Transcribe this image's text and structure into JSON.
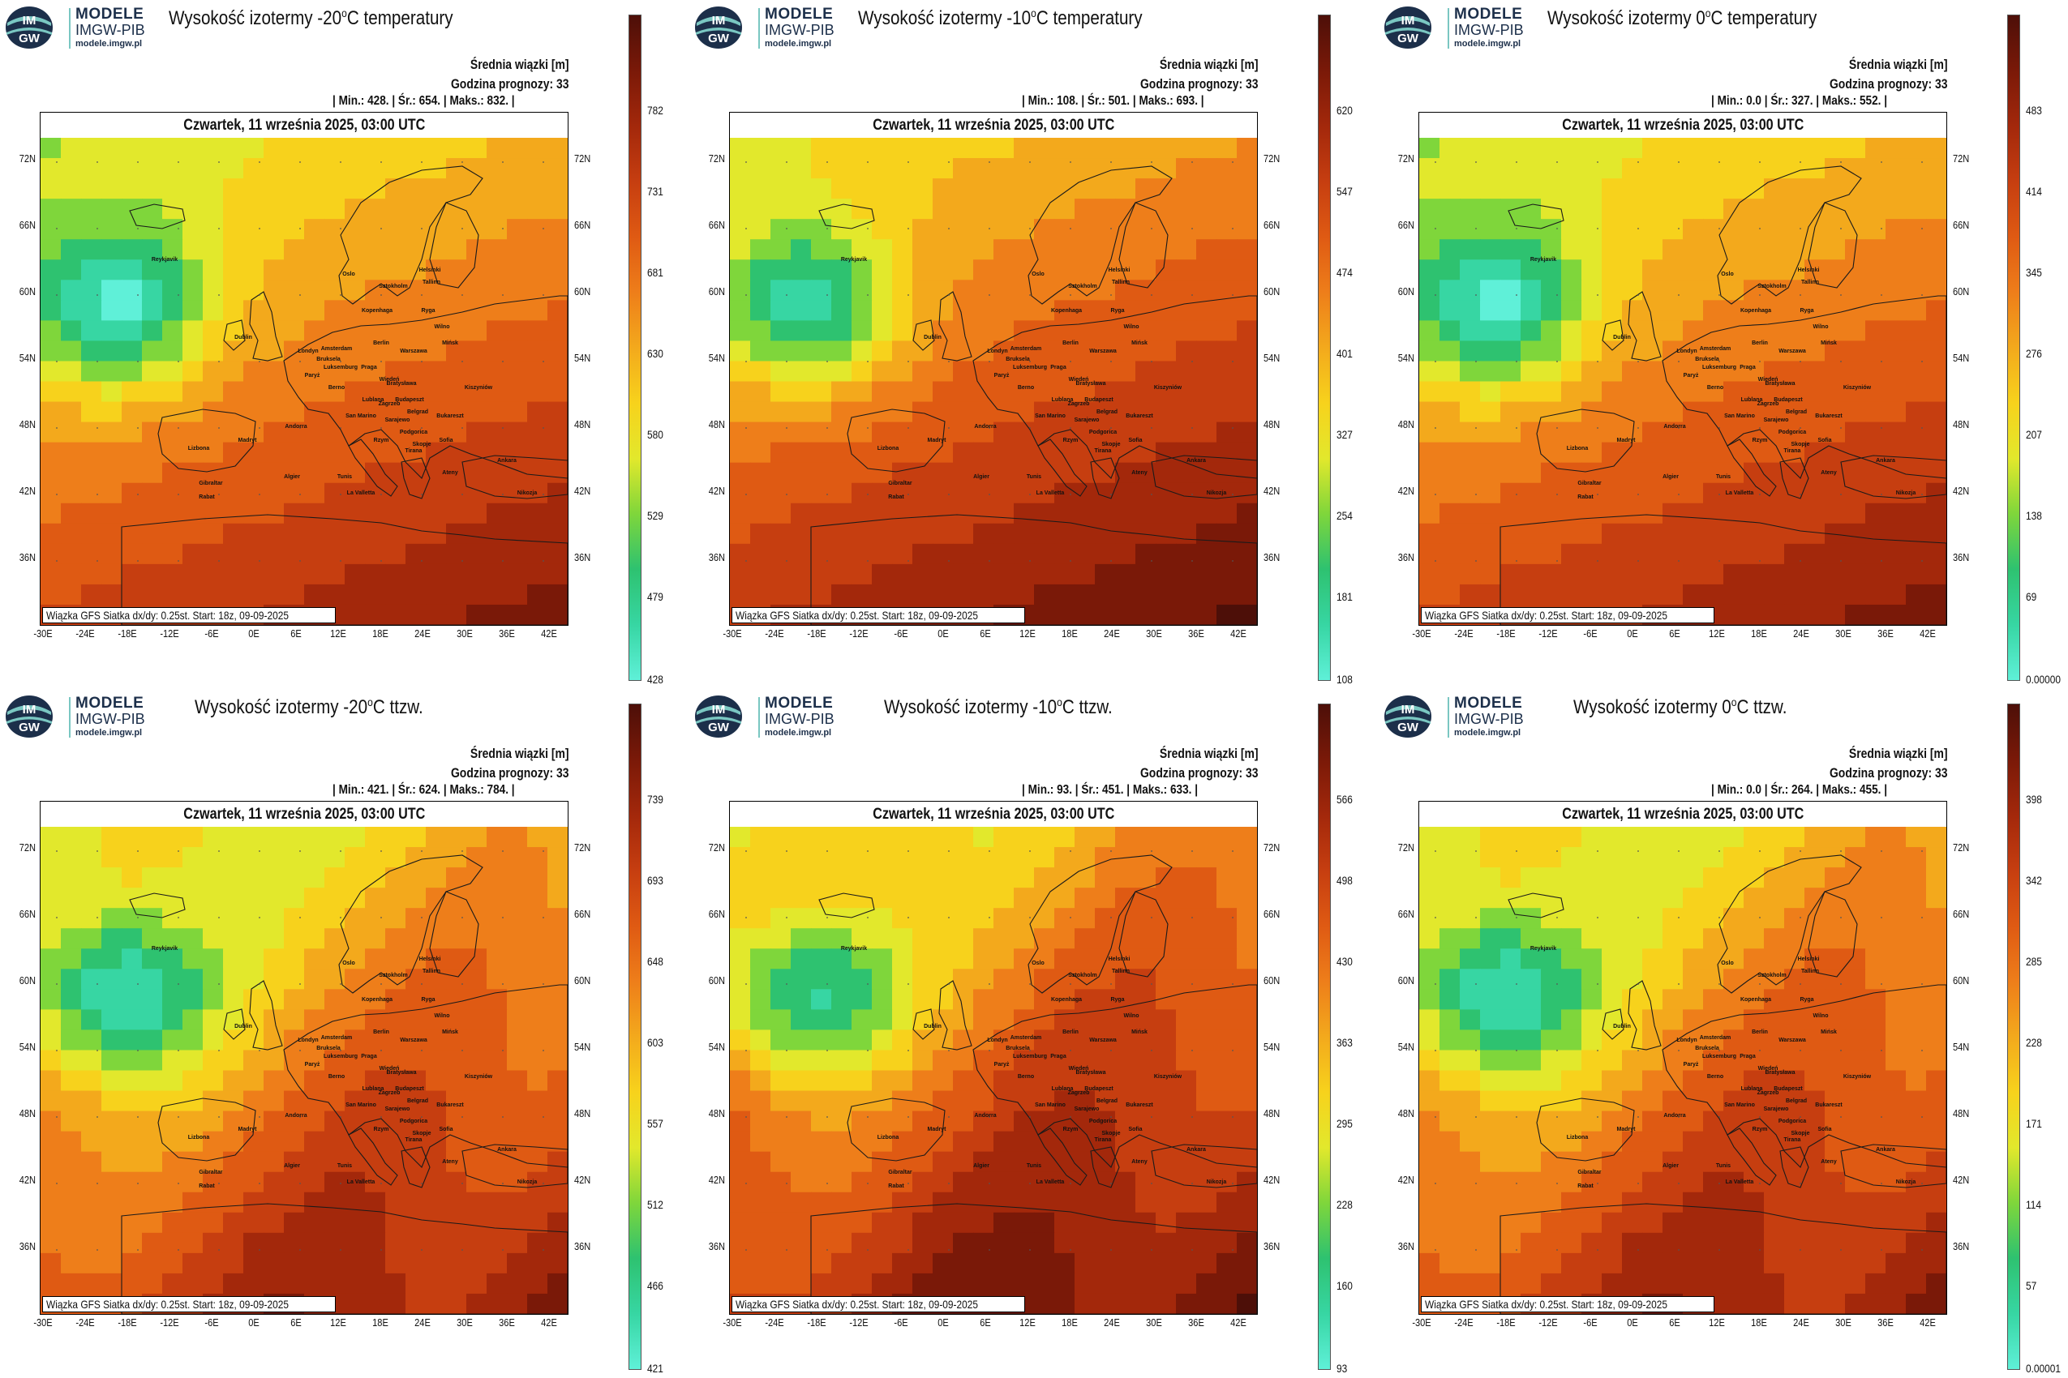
{
  "logo": {
    "line1": "MODELE",
    "line2": "IMGW-PIB",
    "line3": "modele.imgw.pl",
    "badge": "IMGW"
  },
  "common": {
    "info_line1": "Średnia wiązki [m]",
    "info_line2": "Godzina prognozy: 33",
    "date": "Czwartek, 11 września 2025, 03:00 UTC",
    "footnote": "Wiązka GFS Siatka dx/dy: 0.25st. Start: 18z, 09-09-2025",
    "x_ticks": [
      "-30E",
      "-24E",
      "-18E",
      "-12E",
      "-6E",
      "0E",
      "6E",
      "12E",
      "18E",
      "24E",
      "30E",
      "36E",
      "42E"
    ],
    "y_ticks": [
      "72N",
      "66N",
      "60N",
      "54N",
      "48N",
      "42N",
      "36N"
    ],
    "cities": [
      "Oslo",
      "Sztokholm",
      "Helsinki",
      "Tallinn",
      "Ryga",
      "Kopenhaga",
      "Wilno",
      "Mińsk",
      "Amsterdam",
      "Bruksela",
      "Berlin",
      "Warszawa",
      "Londyn",
      "Dublin",
      "Luksemburg",
      "Paryż",
      "Praga",
      "Wiedeń",
      "Bratysława",
      "Kiszyniów",
      "Budapeszt",
      "Berno",
      "Lublana",
      "Zagrzeb",
      "Belgrad",
      "Bukareszt",
      "San Marino",
      "Sarajewo",
      "Podgorica",
      "Sofia",
      "Andorra",
      "Rzym",
      "Skopje",
      "Tirana",
      "Ankara",
      "Madryt",
      "Lizbona",
      "Ateny",
      "Algier",
      "Tunis",
      "Gibraltar",
      "Rabat",
      "La Valletta",
      "Nikozja",
      "Reykjavik"
    ]
  },
  "colors": {
    "cbar": [
      "#5ff0d8",
      "#37d6a3",
      "#2ec270",
      "#7fd63b",
      "#e2e82c",
      "#f7d21c",
      "#f3a91c",
      "#ee7e1a",
      "#df5a13",
      "#c63e10",
      "#a3280b",
      "#7a1908",
      "#4d0f08"
    ]
  },
  "panels": [
    {
      "title_pre": "Wysokość izotermy -20",
      "title_sup": "o",
      "title_post": "C temperatury",
      "stats": {
        "min_label": "Min.:",
        "min": "428.",
        "avg_label": "Śr.:",
        "avg": "654.",
        "max_label": "Maks.:",
        "max": "832."
      },
      "cbar_labels": [
        "782",
        "731",
        "681",
        "630",
        "580",
        "529",
        "479",
        "428"
      ],
      "range": [
        428,
        832
      ]
    },
    {
      "title_pre": "Wysokość izotermy -10",
      "title_sup": "o",
      "title_post": "C temperatury",
      "stats": {
        "min_label": "Min.:",
        "min": "108.",
        "avg_label": "Śr.:",
        "avg": "501.",
        "max_label": "Maks.:",
        "max": "693."
      },
      "cbar_labels": [
        "620",
        "547",
        "474",
        "401",
        "327",
        "254",
        "181",
        "108"
      ],
      "range": [
        108,
        693
      ]
    },
    {
      "title_pre": "Wysokość izotermy 0",
      "title_sup": "o",
      "title_post": "C temperatury",
      "stats": {
        "min_label": "Min.:",
        "min": "0.0",
        "avg_label": "Śr.:",
        "avg": "327.",
        "max_label": "Maks.:",
        "max": "552."
      },
      "cbar_labels": [
        "483",
        "414",
        "345",
        "276",
        "207",
        "138",
        "69",
        "0.00000"
      ],
      "range": [
        0,
        552
      ]
    },
    {
      "title_pre": "Wysokość izotermy -20",
      "title_sup": "o",
      "title_post": "C ttzw.",
      "stats": {
        "min_label": "Min.:",
        "min": "421.",
        "avg_label": "Śr.:",
        "avg": "624.",
        "max_label": "Maks.:",
        "max": "784."
      },
      "cbar_labels": [
        "739",
        "693",
        "648",
        "603",
        "557",
        "512",
        "466",
        "421"
      ],
      "range": [
        421,
        784
      ]
    },
    {
      "title_pre": "Wysokość izotermy -10",
      "title_sup": "o",
      "title_post": "C ttzw.",
      "stats": {
        "min_label": "Min.:",
        "min": "93.",
        "avg_label": "Śr.:",
        "avg": "451.",
        "max_label": "Maks.:",
        "max": "633."
      },
      "cbar_labels": [
        "566",
        "498",
        "430",
        "363",
        "295",
        "228",
        "160",
        "93"
      ],
      "range": [
        93,
        633
      ]
    },
    {
      "title_pre": "Wysokość izotermy 0",
      "title_sup": "o",
      "title_post": "C ttzw.",
      "stats": {
        "min_label": "Min.:",
        "min": "0.0",
        "avg_label": "Śr.:",
        "avg": "264.",
        "max_label": "Maks.:",
        "max": "455."
      },
      "cbar_labels": [
        "398",
        "342",
        "285",
        "228",
        "171",
        "114",
        "57",
        "0.00001"
      ],
      "range": [
        0,
        455
      ]
    }
  ]
}
